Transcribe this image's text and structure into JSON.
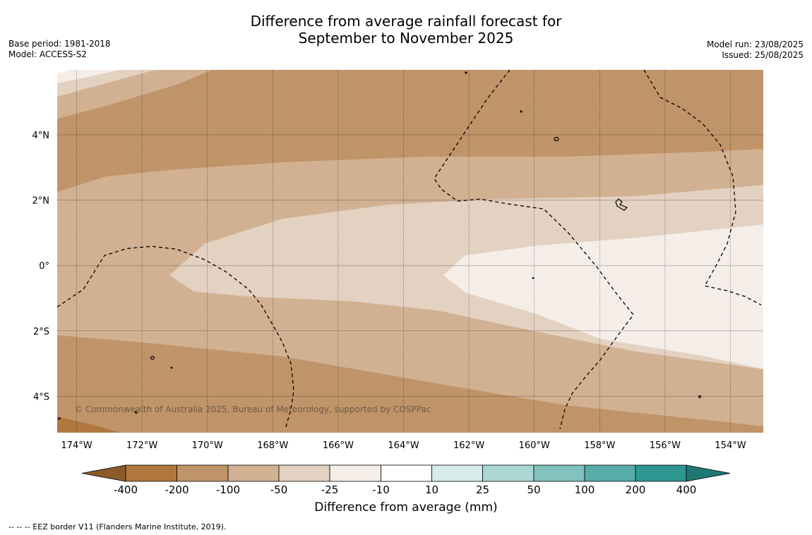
{
  "header": {
    "title_line1": "Difference from average rainfall forecast for",
    "title_line2": "September to November 2025",
    "base_period": "Base period: 1981-2018",
    "model": "Model: ACCESS-S2",
    "model_run": "Model run: 23/08/2025",
    "issued": "Issued: 25/08/2025"
  },
  "map": {
    "lon_ticks": [
      "174°W",
      "172°W",
      "170°W",
      "168°W",
      "166°W",
      "164°W",
      "162°W",
      "160°W",
      "158°W",
      "156°W",
      "154°W"
    ],
    "lat_ticks": [
      "4°N",
      "2°N",
      "0°",
      "2°S",
      "4°S"
    ],
    "copyright": "© Commonwealth of Australia 2025, Bureau of Meteorology, supported by COSPPac",
    "colors": {
      "c_m200": "#b0783f",
      "c_m100": "#c09469",
      "c_m50": "#d2b192",
      "c_m25": "#e3d1c1",
      "c_m10": "#f5ede8",
      "c_0": "#ffffff",
      "c_p25": "#d6ecea",
      "c_p50": "#abd6d4",
      "c_p100": "#81c1be",
      "c_p200": "#58aca8",
      "c_p400": "#2e9792"
    }
  },
  "colorbar": {
    "labels": [
      "-400",
      "-200",
      "-100",
      "-50",
      "-25",
      "-10",
      "10",
      "25",
      "50",
      "100",
      "200",
      "400"
    ],
    "title": "Difference from average (mm)",
    "colors": [
      "#8b5a2b",
      "#b0783f",
      "#c09469",
      "#d2b192",
      "#e3d1c1",
      "#f5ede8",
      "#ffffff",
      "#d6ecea",
      "#abd6d4",
      "#81c1be",
      "#58aca8",
      "#2e9792",
      "#207874"
    ]
  },
  "footnote": "--  --  -- EEZ border V11 (Flanders Marine Institute, 2019)."
}
